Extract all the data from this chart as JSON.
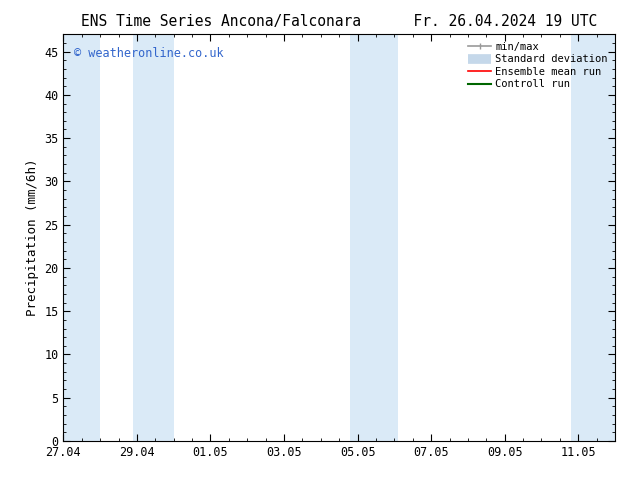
{
  "title": "ENS Time Series Ancona/Falconara      Fr. 26.04.2024 19 UTC",
  "ylabel": "Precipitation (mm/6h)",
  "ylim": [
    0,
    47
  ],
  "yticks": [
    0,
    5,
    10,
    15,
    20,
    25,
    30,
    35,
    40,
    45
  ],
  "xlim_days": [
    0,
    15
  ],
  "xtick_labels": [
    "27.04",
    "29.04",
    "01.05",
    "03.05",
    "05.05",
    "07.05",
    "09.05",
    "11.05"
  ],
  "xtick_positions": [
    0,
    2,
    4,
    6,
    8,
    10,
    12,
    14
  ],
  "shaded_bands": [
    {
      "x_start": -0.1,
      "x_end": 1.0,
      "color": "#daeaf7"
    },
    {
      "x_start": 1.9,
      "x_end": 3.0,
      "color": "#daeaf7"
    },
    {
      "x_start": 7.8,
      "x_end": 9.1,
      "color": "#daeaf7"
    },
    {
      "x_start": 13.8,
      "x_end": 15.1,
      "color": "#daeaf7"
    }
  ],
  "watermark": "© weatheronline.co.uk",
  "watermark_color": "#3366cc",
  "legend_items": [
    {
      "label": "min/max",
      "color": "#999999",
      "lw": 1.2
    },
    {
      "label": "Standard deviation",
      "color": "#c5d8ea",
      "lw": 7
    },
    {
      "label": "Ensemble mean run",
      "color": "#ff0000",
      "lw": 1.2
    },
    {
      "label": "Controll run",
      "color": "#006600",
      "lw": 1.5
    }
  ],
  "bg_color": "#ffffff",
  "title_fontsize": 10.5,
  "tick_fontsize": 8.5,
  "label_fontsize": 9,
  "minor_tick_interval": 0.25
}
